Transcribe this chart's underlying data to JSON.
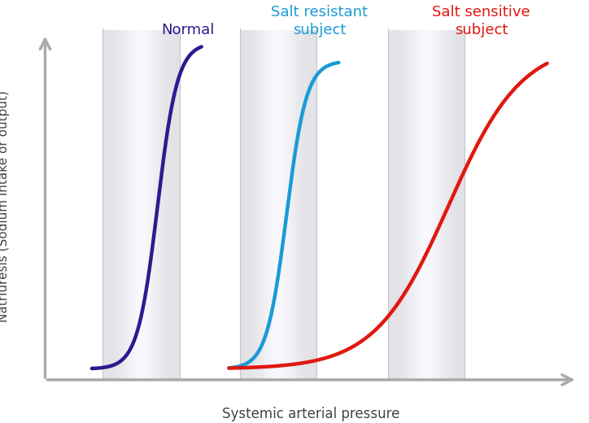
{
  "xlabel": "Systemic arterial pressure",
  "ylabel": "Natriuresis (Sodium intake or output)",
  "background_color": "#ffffff",
  "curve_normal_color": "#2B1B8E",
  "curve_salt_resistant_color": "#1A9BD6",
  "curve_salt_sensitive_color": "#E01810",
  "label_normal": "Normal",
  "label_salt_resistant": "Salt resistant\nsubject",
  "label_salt_sensitive": "Salt sensitive\nsubject",
  "label_normal_color": "#2B1B8E",
  "label_salt_resistant_color": "#1A9BD6",
  "label_salt_sensitive_color": "#E01810",
  "arrow_color": "#AAAAAA",
  "line_width": 3.2,
  "label_fontsize": 13,
  "axis_label_fontsize": 12
}
